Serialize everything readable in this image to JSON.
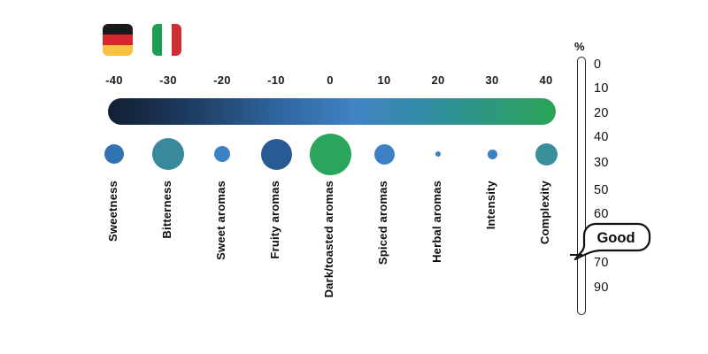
{
  "flags": [
    {
      "name": "flag-germany",
      "country": "Germany",
      "direction": "column",
      "stripes": [
        "#1a1a1a",
        "#d7272e",
        "#f6c244"
      ]
    },
    {
      "name": "flag-italy",
      "country": "Italy",
      "direction": "row",
      "stripes": [
        "#1e9e55",
        "#ffffff",
        "#d02c33"
      ]
    }
  ],
  "chart_data": {
    "type": "bubble",
    "title": "",
    "x_axis": {
      "ticks": [
        "-40",
        "-30",
        "-20",
        "-10",
        "0",
        "10",
        "20",
        "30",
        "40"
      ],
      "range": [
        -40,
        40
      ],
      "grid": false
    },
    "colorbar": {
      "orientation": "horizontal",
      "gradient_stops": [
        "#121f33 0%",
        "#1d3c60 18%",
        "#2e659f 38%",
        "#4183c4 55%",
        "#318da3 72%",
        "#2aa455 100%"
      ]
    },
    "categories": [
      "Sweetness",
      "Bitterness",
      "Sweet aromas",
      "Fruity aromas",
      "Dark/toasted aromas",
      "Spiced aromas",
      "Herbal aromas",
      "Intensity",
      "Complexity"
    ],
    "bubble_radius_px": [
      11,
      18,
      9,
      17.5,
      23.5,
      11.5,
      3,
      5.5,
      12.5
    ],
    "bubble_colors": [
      "#3273b4",
      "#38899b",
      "#3c82c6",
      "#2a5a94",
      "#2aa55c",
      "#3c80c6",
      "#3b7fc4",
      "#3a7fc0",
      "#39909c"
    ],
    "right_scale": {
      "unit": "%",
      "tick_labels": [
        "0",
        "10",
        "20",
        "40",
        "30",
        "50",
        "60",
        "70",
        "90"
      ],
      "annotation": {
        "label": "Good",
        "position_between": [
          "60",
          "70"
        ]
      }
    }
  }
}
